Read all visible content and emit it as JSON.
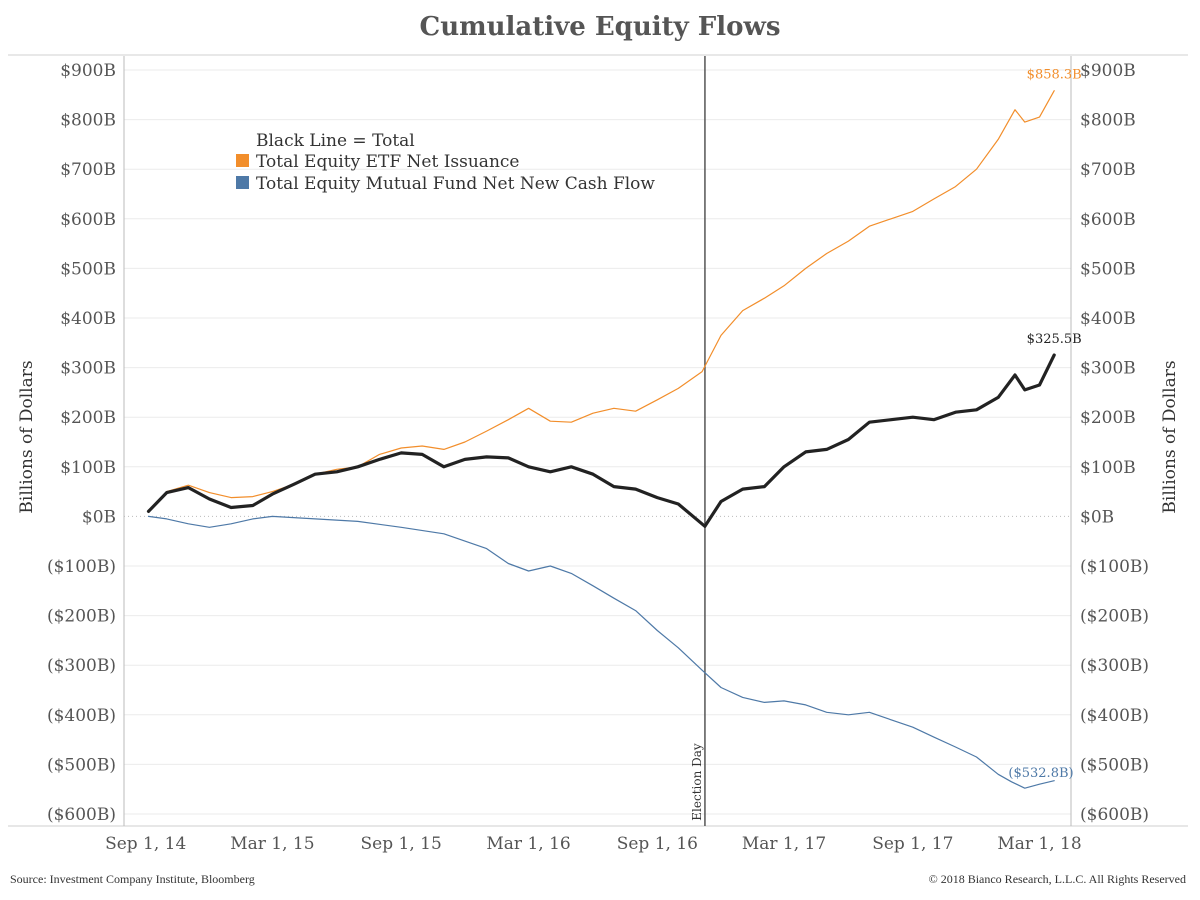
{
  "title": "Cumulative Equity Flows",
  "footer": {
    "source": "Source: Investment Company Institute, Bloomberg",
    "copyright": "© 2018 Bianco Research, L.L.C. All Rights Reserved"
  },
  "chart_data": {
    "type": "line",
    "title": "Cumulative Equity Flows",
    "ylabel": "Billions of Dollars",
    "ylabel_right": "Billions of Dollars",
    "ylim": [
      -600,
      900
    ],
    "y_ticks": [
      900,
      800,
      700,
      600,
      500,
      400,
      300,
      200,
      100,
      0,
      -100,
      -200,
      -300,
      -400,
      -500,
      -600
    ],
    "y_tick_labels": [
      "$900B",
      "$800B",
      "$700B",
      "$600B",
      "$500B",
      "$400B",
      "$300B",
      "$200B",
      "$100B",
      "$0B",
      "($100B)",
      "($200B)",
      "($300B)",
      "($400B)",
      "($500B)",
      "($600B)"
    ],
    "xlim": [
      "2014-08-01",
      "2018-04-15"
    ],
    "x_ticks": [
      "2014-09-01",
      "2015-03-01",
      "2015-09-01",
      "2016-03-01",
      "2016-09-01",
      "2017-03-01",
      "2017-09-01",
      "2018-03-01"
    ],
    "x_tick_labels": [
      "Sep 1, 14",
      "Mar 1, 15",
      "Sep 1, 15",
      "Mar 1, 16",
      "Sep 1, 16",
      "Mar 1, 17",
      "Sep 1, 17",
      "Mar 1, 18"
    ],
    "grid": true,
    "legend": {
      "placement": "top-left",
      "header": "Black Line = Total",
      "entries": [
        "Total Equity ETF Net Issuance",
        "Total Equity Mutual Fund Net New Cash Flow"
      ]
    },
    "annotations": [
      {
        "label": "Election Day",
        "x": "2016-11-08"
      }
    ],
    "colors": {
      "etf": "#f28e2b",
      "mutual_fund": "#4e79a7",
      "total": "#222222",
      "gridline": "#ebebeb",
      "axis": "#bbbbbb"
    },
    "series": [
      {
        "name": "Total Equity ETF Net Issuance",
        "color": "#f28e2b",
        "end_label": "$858.3B",
        "points": [
          [
            "2014-09-05",
            10
          ],
          [
            "2014-10-01",
            50
          ],
          [
            "2014-11-01",
            63
          ],
          [
            "2014-12-01",
            48
          ],
          [
            "2015-01-01",
            38
          ],
          [
            "2015-02-01",
            40
          ],
          [
            "2015-03-01",
            50
          ],
          [
            "2015-04-01",
            65
          ],
          [
            "2015-05-01",
            85
          ],
          [
            "2015-06-01",
            95
          ],
          [
            "2015-07-01",
            100
          ],
          [
            "2015-08-01",
            125
          ],
          [
            "2015-09-01",
            138
          ],
          [
            "2015-10-01",
            142
          ],
          [
            "2015-11-01",
            135
          ],
          [
            "2015-12-01",
            150
          ],
          [
            "2016-01-01",
            172
          ],
          [
            "2016-02-01",
            195
          ],
          [
            "2016-03-01",
            218
          ],
          [
            "2016-04-01",
            192
          ],
          [
            "2016-05-01",
            190
          ],
          [
            "2016-06-01",
            208
          ],
          [
            "2016-07-01",
            218
          ],
          [
            "2016-08-01",
            212
          ],
          [
            "2016-09-01",
            235
          ],
          [
            "2016-10-01",
            258
          ],
          [
            "2016-11-04",
            292
          ],
          [
            "2016-12-01",
            365
          ],
          [
            "2017-01-01",
            415
          ],
          [
            "2017-02-01",
            440
          ],
          [
            "2017-03-01",
            465
          ],
          [
            "2017-04-01",
            500
          ],
          [
            "2017-05-01",
            530
          ],
          [
            "2017-06-01",
            555
          ],
          [
            "2017-07-01",
            585
          ],
          [
            "2017-08-01",
            600
          ],
          [
            "2017-09-01",
            615
          ],
          [
            "2017-10-01",
            640
          ],
          [
            "2017-11-01",
            665
          ],
          [
            "2017-12-01",
            700
          ],
          [
            "2018-01-01",
            760
          ],
          [
            "2018-01-25",
            820
          ],
          [
            "2018-02-08",
            795
          ],
          [
            "2018-03-01",
            805
          ],
          [
            "2018-03-22",
            858.3
          ]
        ]
      },
      {
        "name": "Total Equity Mutual Fund Net New Cash Flow",
        "color": "#4e79a7",
        "end_label": "($532.8B)",
        "points": [
          [
            "2014-09-05",
            0
          ],
          [
            "2014-10-01",
            -5
          ],
          [
            "2014-11-01",
            -15
          ],
          [
            "2014-12-01",
            -22
          ],
          [
            "2015-01-01",
            -15
          ],
          [
            "2015-02-01",
            -5
          ],
          [
            "2015-03-01",
            0
          ],
          [
            "2015-05-01",
            -5
          ],
          [
            "2015-07-01",
            -10
          ],
          [
            "2015-09-01",
            -22
          ],
          [
            "2015-11-01",
            -35
          ],
          [
            "2016-01-01",
            -65
          ],
          [
            "2016-02-01",
            -95
          ],
          [
            "2016-03-01",
            -110
          ],
          [
            "2016-04-01",
            -100
          ],
          [
            "2016-05-01",
            -115
          ],
          [
            "2016-06-01",
            -140
          ],
          [
            "2016-07-01",
            -165
          ],
          [
            "2016-08-01",
            -190
          ],
          [
            "2016-09-01",
            -230
          ],
          [
            "2016-10-01",
            -265
          ],
          [
            "2016-11-04",
            -310
          ],
          [
            "2016-12-01",
            -345
          ],
          [
            "2017-01-01",
            -365
          ],
          [
            "2017-02-01",
            -375
          ],
          [
            "2017-03-01",
            -372
          ],
          [
            "2017-04-01",
            -380
          ],
          [
            "2017-05-01",
            -395
          ],
          [
            "2017-06-01",
            -400
          ],
          [
            "2017-07-01",
            -395
          ],
          [
            "2017-08-01",
            -410
          ],
          [
            "2017-09-01",
            -425
          ],
          [
            "2017-10-01",
            -445
          ],
          [
            "2017-11-01",
            -465
          ],
          [
            "2017-12-01",
            -485
          ],
          [
            "2018-01-01",
            -520
          ],
          [
            "2018-01-20",
            -535
          ],
          [
            "2018-02-08",
            -548
          ],
          [
            "2018-03-01",
            -540
          ],
          [
            "2018-03-22",
            -532.8
          ]
        ]
      },
      {
        "name": "Total",
        "color": "#222222",
        "end_label": "$325.5B",
        "points": [
          [
            "2014-09-05",
            10
          ],
          [
            "2014-10-01",
            48
          ],
          [
            "2014-11-01",
            58
          ],
          [
            "2014-12-01",
            35
          ],
          [
            "2015-01-01",
            18
          ],
          [
            "2015-02-01",
            22
          ],
          [
            "2015-03-01",
            45
          ],
          [
            "2015-04-01",
            65
          ],
          [
            "2015-05-01",
            85
          ],
          [
            "2015-06-01",
            90
          ],
          [
            "2015-07-01",
            100
          ],
          [
            "2015-08-01",
            115
          ],
          [
            "2015-09-01",
            128
          ],
          [
            "2015-10-01",
            125
          ],
          [
            "2015-11-01",
            100
          ],
          [
            "2015-12-01",
            115
          ],
          [
            "2016-01-01",
            120
          ],
          [
            "2016-02-01",
            118
          ],
          [
            "2016-03-01",
            100
          ],
          [
            "2016-04-01",
            90
          ],
          [
            "2016-05-01",
            100
          ],
          [
            "2016-06-01",
            85
          ],
          [
            "2016-07-01",
            60
          ],
          [
            "2016-08-01",
            55
          ],
          [
            "2016-09-01",
            38
          ],
          [
            "2016-10-01",
            25
          ],
          [
            "2016-11-08",
            -20
          ],
          [
            "2016-12-01",
            30
          ],
          [
            "2017-01-01",
            55
          ],
          [
            "2017-02-01",
            60
          ],
          [
            "2017-03-01",
            100
          ],
          [
            "2017-04-01",
            130
          ],
          [
            "2017-05-01",
            135
          ],
          [
            "2017-06-01",
            155
          ],
          [
            "2017-07-01",
            190
          ],
          [
            "2017-08-01",
            195
          ],
          [
            "2017-09-01",
            200
          ],
          [
            "2017-10-01",
            195
          ],
          [
            "2017-11-01",
            210
          ],
          [
            "2017-12-01",
            215
          ],
          [
            "2018-01-01",
            240
          ],
          [
            "2018-01-25",
            285
          ],
          [
            "2018-02-08",
            255
          ],
          [
            "2018-03-01",
            265
          ],
          [
            "2018-03-22",
            325.5
          ]
        ]
      }
    ]
  }
}
